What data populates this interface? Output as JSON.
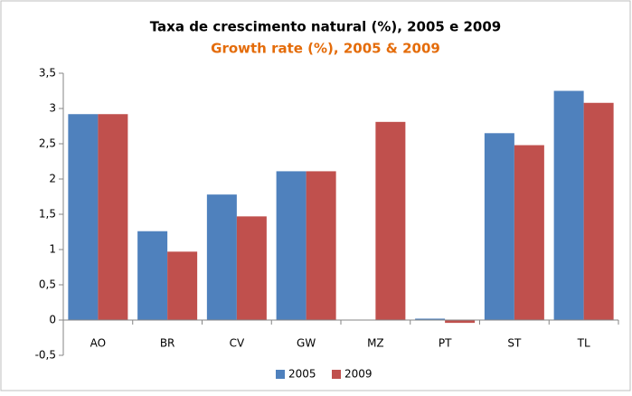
{
  "chart_data": {
    "type": "bar",
    "title": "Taxa de crescimento natural (%), 2005 e 2009",
    "subtitle": "Growth rate (%), 2005 & 2009",
    "categories": [
      "AO",
      "BR",
      "CV",
      "GW",
      "MZ",
      "PT",
      "ST",
      "TL"
    ],
    "series": [
      {
        "name": "2005",
        "color": "#4f81bd",
        "values": [
          2.92,
          1.26,
          1.78,
          2.11,
          null,
          0.02,
          2.65,
          3.25
        ]
      },
      {
        "name": "2009",
        "color": "#c0504d",
        "values": [
          2.92,
          0.97,
          1.47,
          2.11,
          2.81,
          -0.04,
          2.48,
          3.08
        ]
      }
    ],
    "ylim": [
      -0.5,
      3.5
    ],
    "yticks": [
      {
        "value": -0.5,
        "label": "-0,5"
      },
      0,
      {
        "value": 0.5,
        "label": "0,5"
      },
      1,
      {
        "value": 1.5,
        "label": "1,5"
      },
      2,
      {
        "value": 2.5,
        "label": "2,5"
      },
      3,
      {
        "value": 3.5,
        "label": "3,5"
      }
    ],
    "grid": false,
    "legend": "bottom"
  }
}
